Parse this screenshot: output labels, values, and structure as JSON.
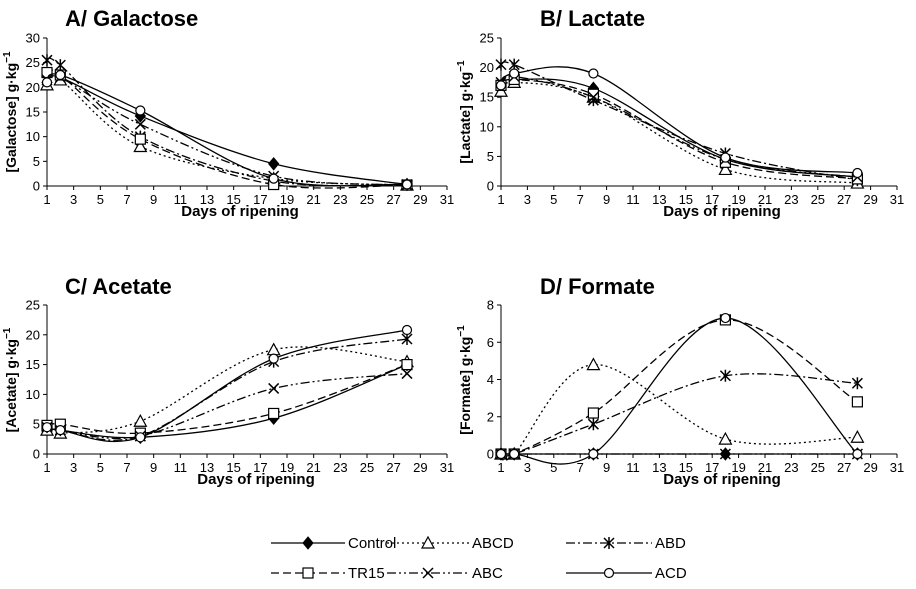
{
  "chart_data": [
    {
      "type": "line",
      "title": "A/ Galactose",
      "xlabel": "Days of ripening",
      "ylabel_main": "[Galactose] g·kg",
      "ylabel_sup": "−1",
      "xlim": [
        1,
        31
      ],
      "ylim": [
        0,
        30
      ],
      "xticks": [
        1,
        3,
        5,
        7,
        9,
        11,
        13,
        15,
        17,
        19,
        21,
        23,
        25,
        27,
        29,
        31
      ],
      "yticks": [
        0,
        5,
        10,
        15,
        20,
        25,
        30
      ],
      "x": [
        1,
        2,
        8,
        18,
        28
      ],
      "series": [
        {
          "name": "Control",
          "values": [
            21.0,
            22.0,
            14.2,
            4.5,
            0.3
          ]
        },
        {
          "name": "ABCD",
          "values": [
            20.5,
            21.5,
            8.0,
            1.5,
            0.2
          ]
        },
        {
          "name": "ABD",
          "values": [
            25.5,
            24.5,
            10.0,
            1.0,
            0.3
          ]
        },
        {
          "name": "TR15",
          "values": [
            23.0,
            22.5,
            9.5,
            0.3,
            0.2
          ]
        },
        {
          "name": "ABC",
          "values": [
            21.5,
            22.0,
            12.5,
            2.0,
            0.2
          ]
        },
        {
          "name": "ACD",
          "values": [
            21.0,
            22.5,
            15.3,
            1.5,
            0.3
          ]
        }
      ]
    },
    {
      "type": "line",
      "title": "B/ Lactate",
      "xlabel": "Days of ripening",
      "ylabel_main": "[Lactate] g·kg",
      "ylabel_sup": "−1",
      "xlim": [
        1,
        31
      ],
      "ylim": [
        0,
        25
      ],
      "xticks": [
        1,
        3,
        5,
        7,
        9,
        11,
        13,
        15,
        17,
        19,
        21,
        23,
        25,
        27,
        29,
        31
      ],
      "yticks": [
        0,
        5,
        10,
        15,
        20,
        25
      ],
      "x": [
        1,
        2,
        8,
        18,
        28
      ],
      "series": [
        {
          "name": "Control",
          "values": [
            17.0,
            18.0,
            16.5,
            4.5,
            1.5
          ]
        },
        {
          "name": "ABCD",
          "values": [
            16.0,
            17.5,
            15.0,
            2.8,
            0.5
          ]
        },
        {
          "name": "ABD",
          "values": [
            20.5,
            20.5,
            14.5,
            5.5,
            1.0
          ]
        },
        {
          "name": "TR15",
          "values": [
            17.0,
            18.0,
            15.5,
            4.0,
            1.2
          ]
        },
        {
          "name": "ABC",
          "values": [
            17.5,
            18.5,
            15.0,
            4.5,
            1.5
          ]
        },
        {
          "name": "ACD",
          "values": [
            17.0,
            19.0,
            19.0,
            4.8,
            2.2
          ]
        }
      ]
    },
    {
      "type": "line",
      "title": "C/ Acetate",
      "xlabel": "Days of ripening",
      "ylabel_main": "[Acetate] g·kg",
      "ylabel_sup": "−1",
      "xlim": [
        1,
        31
      ],
      "ylim": [
        0,
        25
      ],
      "xticks": [
        1,
        3,
        5,
        7,
        9,
        11,
        13,
        15,
        17,
        19,
        21,
        23,
        25,
        27,
        29,
        31
      ],
      "yticks": [
        0,
        5,
        10,
        15,
        20,
        25
      ],
      "x": [
        1,
        2,
        8,
        18,
        28
      ],
      "series": [
        {
          "name": "Control",
          "values": [
            4.5,
            4.0,
            2.8,
            6.0,
            15.0
          ]
        },
        {
          "name": "ABCD",
          "values": [
            4.0,
            3.5,
            5.5,
            17.5,
            15.5
          ]
        },
        {
          "name": "ABD",
          "values": [
            4.5,
            4.0,
            3.0,
            15.5,
            19.3
          ]
        },
        {
          "name": "TR15",
          "values": [
            4.8,
            5.0,
            3.5,
            6.8,
            15.0
          ]
        },
        {
          "name": "ABC",
          "values": [
            4.5,
            4.0,
            3.0,
            11.0,
            13.5
          ]
        },
        {
          "name": "ACD",
          "values": [
            4.5,
            4.0,
            2.8,
            16.0,
            20.8
          ]
        }
      ]
    },
    {
      "type": "line",
      "title": "D/ Formate",
      "xlabel": "Days of ripening",
      "ylabel_main": "[Formate] g·kg",
      "ylabel_sup": "−1",
      "xlim": [
        1,
        31
      ],
      "ylim": [
        0,
        8
      ],
      "xticks": [
        1,
        3,
        5,
        7,
        9,
        11,
        13,
        15,
        17,
        19,
        21,
        23,
        25,
        27,
        29,
        31
      ],
      "yticks": [
        0,
        2,
        4,
        6,
        8
      ],
      "x": [
        1,
        2,
        8,
        18,
        28
      ],
      "series": [
        {
          "name": "Control",
          "values": [
            0,
            0,
            0,
            0,
            0
          ]
        },
        {
          "name": "ABCD",
          "values": [
            0,
            0,
            4.8,
            0.8,
            0.9
          ]
        },
        {
          "name": "ABD",
          "values": [
            0,
            0,
            1.6,
            4.2,
            3.8
          ]
        },
        {
          "name": "TR15",
          "values": [
            0,
            0,
            2.2,
            7.2,
            2.8
          ]
        },
        {
          "name": "ABC",
          "values": [
            0,
            0,
            0,
            0,
            0
          ]
        },
        {
          "name": "ACD",
          "values": [
            0,
            0,
            0,
            7.3,
            0
          ]
        }
      ]
    }
  ],
  "legend": [
    {
      "name": "Control",
      "dash": "solid",
      "marker": "diamond-filled"
    },
    {
      "name": "ABCD",
      "dash": "dotted",
      "marker": "triangle-open"
    },
    {
      "name": "ABD",
      "dash": "dashdot",
      "marker": "asterisk"
    },
    {
      "name": "TR15",
      "dash": "dashed",
      "marker": "square-open"
    },
    {
      "name": "ABC",
      "dash": "dashdotdot",
      "marker": "cross"
    },
    {
      "name": "ACD",
      "dash": "solid",
      "marker": "circle-open"
    }
  ],
  "colors": {
    "line": "#000000",
    "axis": "#000000",
    "background": "#ffffff"
  }
}
